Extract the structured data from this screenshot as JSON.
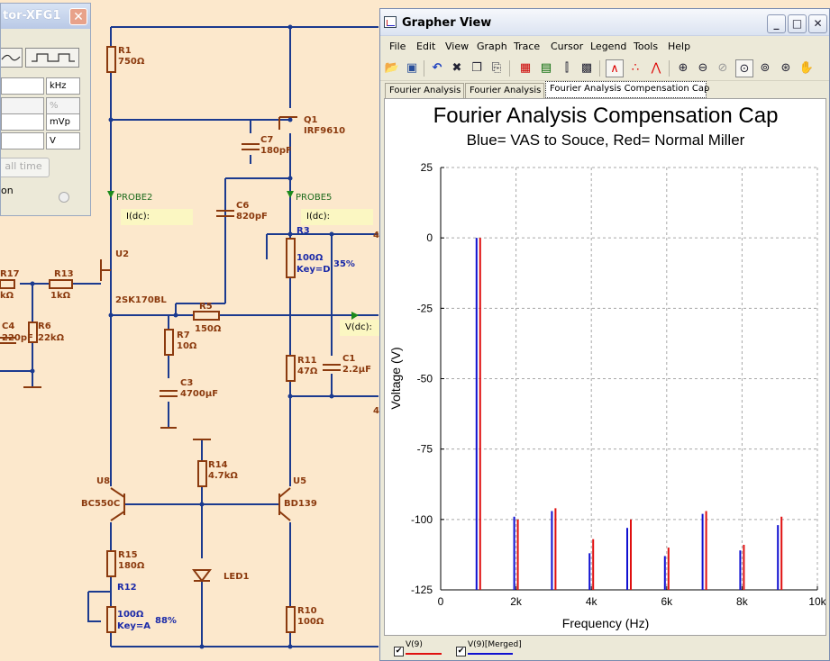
{
  "schematic": {
    "components": [
      {
        "id": "r1",
        "name": "R1",
        "value": "750Ω"
      },
      {
        "id": "c7",
        "name": "C7",
        "value": "180pF"
      },
      {
        "id": "q1",
        "name": "Q1",
        "value": "IRF9610"
      },
      {
        "id": "c6",
        "name": "C6",
        "value": "820pF"
      },
      {
        "id": "u2",
        "name": "U2",
        "value": "2SK170BL"
      },
      {
        "id": "r17",
        "name": "R17",
        "value": "kΩ"
      },
      {
        "id": "r13",
        "name": "R13",
        "value": "1kΩ"
      },
      {
        "id": "c4",
        "name": "C4",
        "value": "220pF"
      },
      {
        "id": "r6",
        "name": "R6",
        "value": "22kΩ"
      },
      {
        "id": "r5",
        "name": "R5",
        "value": "150Ω"
      },
      {
        "id": "r7",
        "name": "R7",
        "value": "10Ω"
      },
      {
        "id": "c3",
        "name": "C3",
        "value": "4700µF"
      },
      {
        "id": "r11",
        "name": "R11",
        "value": "47Ω"
      },
      {
        "id": "c1",
        "name": "C1",
        "value": "2.2µF"
      },
      {
        "id": "r14",
        "name": "R14",
        "value": "4.7kΩ"
      },
      {
        "id": "u8",
        "name": "U8",
        "value": "BC550C"
      },
      {
        "id": "u5",
        "name": "U5",
        "value": "BD139"
      },
      {
        "id": "r15",
        "name": "R15",
        "value": "180Ω"
      },
      {
        "id": "led1",
        "name": "",
        "value": "LED1"
      },
      {
        "id": "r10",
        "name": "R10",
        "value": "100Ω"
      }
    ],
    "r3": {
      "name": "R3",
      "value": "100Ω",
      "key": "Key=D",
      "percent": "35%"
    },
    "r12": {
      "name": "R12",
      "value": "100Ω",
      "key": "Key=A",
      "percent": "88%"
    },
    "probes": {
      "probe2": "PROBE2",
      "probe5": "PROBE5"
    },
    "idc_label": "I(dc):",
    "vdc_label": "V(dc):",
    "connector_label": "4"
  },
  "function_generator": {
    "title": "tor-XFG1",
    "units": [
      "kHz",
      "%",
      "mVp",
      "V"
    ],
    "button_all_time": "all time",
    "monitor_text": "on",
    "close_label": "✕"
  },
  "grapher": {
    "title": "Grapher View",
    "menu": [
      "File",
      "Edit",
      "View",
      "Graph",
      "Trace",
      "Cursor",
      "Legend",
      "Tools",
      "Help"
    ],
    "tabs": [
      "Fourier Analysis",
      "Fourier Analysis",
      "Fourier Analysis Compensation Cap"
    ],
    "active_tab": 2,
    "window_buttons": {
      "minimize": "_",
      "maximize": "□",
      "close": "✕"
    },
    "legend": [
      {
        "label": "V(9)",
        "color": "#e01010",
        "checked": true
      },
      {
        "label": "V(9)[Merged]",
        "color": "#1010d0",
        "checked": true
      }
    ]
  },
  "chart_data": {
    "type": "bar",
    "title": "Fourier Analysis Compensation Cap",
    "subtitle": "Blue= VAS to Souce, Red= Normal Miller",
    "xlabel": "Frequency (Hz)",
    "ylabel": "Voltage (V)",
    "xlim": [
      0,
      10000
    ],
    "ylim": [
      -125,
      25
    ],
    "xticks": [
      0,
      2000,
      4000,
      6000,
      8000,
      10000
    ],
    "xtick_labels": [
      "0",
      "2k",
      "4k",
      "6k",
      "8k",
      "10k"
    ],
    "yticks": [
      25,
      0,
      -25,
      -50,
      -75,
      -100,
      -125
    ],
    "grid": true,
    "series": [
      {
        "name": "V(9)[Merged]",
        "color": "#1010d0",
        "x": [
          1000,
          2000,
          3000,
          4000,
          5000,
          6000,
          7000,
          8000,
          9000
        ],
        "values": [
          0,
          -99,
          -97,
          -112,
          -103,
          -113,
          -98,
          -111,
          -102
        ]
      },
      {
        "name": "V(9)",
        "color": "#e01010",
        "x": [
          1000,
          2000,
          3000,
          4000,
          5000,
          6000,
          7000,
          8000,
          9000
        ],
        "values": [
          0,
          -100,
          -96,
          -107,
          -100,
          -110,
          -97,
          -109,
          -99
        ]
      }
    ]
  }
}
